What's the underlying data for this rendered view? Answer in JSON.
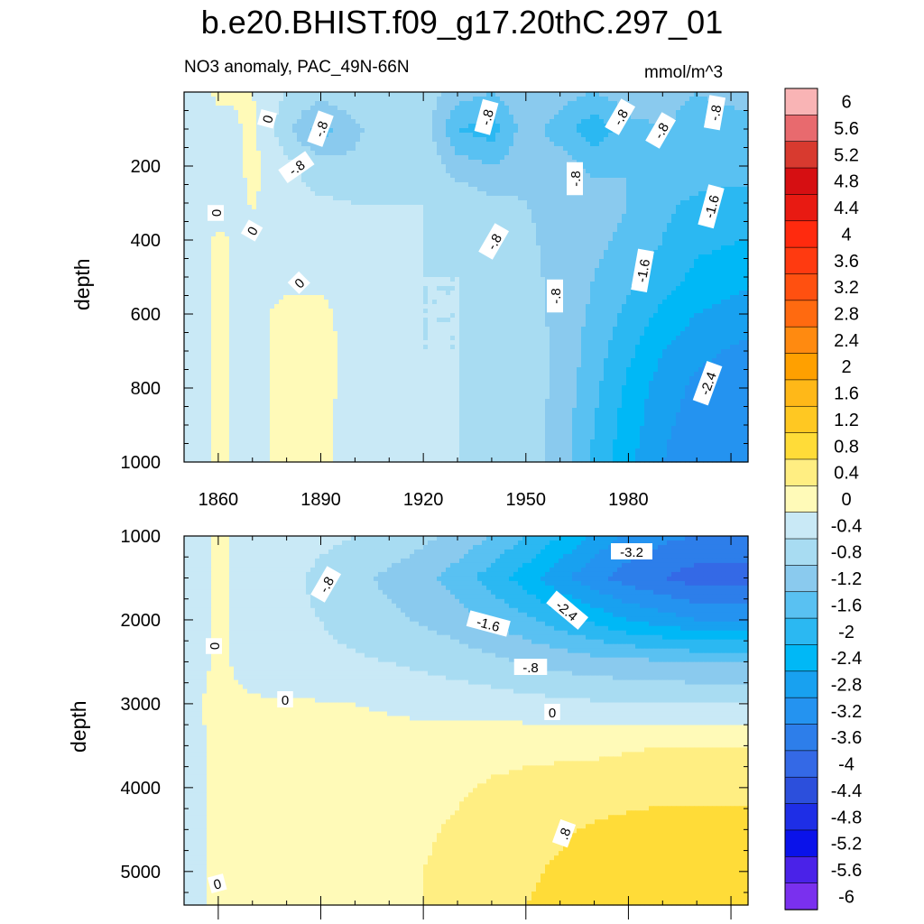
{
  "page_title": "b.e20.BHIST.f09_g17.20thC.297_01",
  "chart_data": [
    {
      "type": "heatmap",
      "panel": "top",
      "subtitle_left": "NO3 anomaly, PAC_49N-66N",
      "subtitle_right": "mmol/m^3",
      "ylabel": "depth",
      "y_reversed": true,
      "ylim": [
        0,
        1000
      ],
      "xlim": [
        1850,
        2015
      ],
      "xticks": [
        1860,
        1890,
        1920,
        1950,
        1980
      ],
      "yticks": [
        200,
        400,
        600,
        800,
        1000
      ],
      "contour_labels": [
        "0",
        "-.8",
        "-.8",
        "-.8",
        "-.8",
        "-.8",
        "-.8",
        "0",
        "0",
        "0",
        "-.8",
        "-.8",
        "-.8",
        "-1.6",
        "-1.6",
        "-2.4"
      ],
      "time": [
        1850,
        1860,
        1870,
        1880,
        1890,
        1900,
        1910,
        1920,
        1930,
        1940,
        1950,
        1960,
        1970,
        1980,
        1990,
        2000,
        2015
      ],
      "depth": [
        0,
        100,
        200,
        300,
        400,
        500,
        600,
        700,
        800,
        900,
        1000
      ],
      "values": [
        [
          -0.3,
          0.1,
          0.0,
          -0.4,
          -0.6,
          -0.5,
          -0.4,
          -0.6,
          -1.0,
          -1.2,
          -0.8,
          -1.0,
          -1.2,
          -1.0,
          -1.1,
          -1.2,
          -1.1
        ],
        [
          -0.4,
          -0.2,
          0.1,
          -0.7,
          -1.4,
          -0.9,
          -0.5,
          -0.5,
          -1.6,
          -1.8,
          -1.0,
          -1.4,
          -1.9,
          -1.3,
          -1.2,
          -1.3,
          -1.3
        ],
        [
          -0.4,
          -0.3,
          0.1,
          -0.3,
          -0.6,
          -0.7,
          -0.5,
          -0.5,
          -1.0,
          -1.2,
          -0.9,
          -1.0,
          -1.3,
          -1.2,
          -1.2,
          -1.3,
          -1.4
        ],
        [
          -0.3,
          -0.3,
          0.05,
          -0.3,
          -0.35,
          -0.4,
          -0.4,
          -0.4,
          -0.5,
          -0.7,
          -0.8,
          -0.9,
          -1.0,
          -1.2,
          -1.5,
          -1.7,
          -1.8
        ],
        [
          -0.3,
          0.1,
          -0.2,
          -0.3,
          -0.3,
          -0.35,
          -0.35,
          -0.4,
          -0.45,
          -0.6,
          -0.75,
          -0.9,
          -1.1,
          -1.3,
          -1.6,
          -1.9,
          -2.0
        ],
        [
          -0.3,
          0.1,
          -0.2,
          -0.2,
          -0.2,
          -0.3,
          -0.35,
          -0.4,
          -0.4,
          -0.5,
          -0.7,
          -0.9,
          -1.2,
          -1.5,
          -1.8,
          -2.1,
          -2.3
        ],
        [
          -0.3,
          0.1,
          -0.2,
          0.2,
          0.2,
          -0.3,
          -0.35,
          -0.4,
          -0.4,
          -0.45,
          -0.65,
          -0.9,
          -1.3,
          -1.7,
          -2.1,
          -2.4,
          -2.6
        ],
        [
          -0.3,
          0.1,
          -0.2,
          0.2,
          0.2,
          -0.25,
          -0.35,
          -0.4,
          -0.4,
          -0.45,
          -0.6,
          -0.9,
          -1.4,
          -1.9,
          -2.4,
          -2.7,
          -2.9
        ],
        [
          -0.3,
          0.1,
          -0.2,
          0.2,
          0.2,
          -0.25,
          -0.3,
          -0.35,
          -0.4,
          -0.45,
          -0.6,
          -0.9,
          -1.5,
          -2.1,
          -2.6,
          -2.9,
          -3.0
        ],
        [
          -0.3,
          0.1,
          -0.2,
          0.2,
          0.15,
          -0.25,
          -0.3,
          -0.35,
          -0.4,
          -0.45,
          -0.55,
          -1.0,
          -1.6,
          -2.2,
          -2.7,
          -3.0,
          -3.1
        ],
        [
          -0.3,
          0.1,
          -0.2,
          0.2,
          0.1,
          -0.25,
          -0.3,
          -0.35,
          -0.4,
          -0.45,
          -0.55,
          -1.0,
          -1.7,
          -2.3,
          -2.8,
          -3.1,
          -3.2
        ]
      ]
    },
    {
      "type": "heatmap",
      "panel": "bottom",
      "ylabel": "depth",
      "y_reversed": true,
      "ylim": [
        1000,
        5400
      ],
      "xlim": [
        1850,
        2015
      ],
      "yticks": [
        1000,
        2000,
        3000,
        4000,
        5000
      ],
      "contour_labels": [
        "-.8",
        "0",
        "0",
        "-1.6",
        "-2.4",
        "-3.2",
        "-.8",
        "0",
        ".8",
        "0"
      ],
      "time": [
        1850,
        1860,
        1870,
        1880,
        1890,
        1900,
        1910,
        1920,
        1930,
        1940,
        1950,
        1960,
        1970,
        1980,
        1990,
        2000,
        2015
      ],
      "depth": [
        1000,
        1500,
        2000,
        2500,
        3000,
        3500,
        4000,
        4500,
        5000,
        5400
      ],
      "values": [
        [
          -0.3,
          0.1,
          -0.2,
          -0.2,
          -0.3,
          -0.4,
          -0.5,
          -0.7,
          -0.9,
          -1.2,
          -1.6,
          -2.0,
          -2.5,
          -2.9,
          -3.1,
          -3.2,
          -3.2
        ],
        [
          -0.3,
          0.1,
          -0.2,
          -0.3,
          -0.5,
          -0.7,
          -0.9,
          -1.1,
          -1.4,
          -1.8,
          -2.2,
          -2.7,
          -3.1,
          -3.4,
          -3.6,
          -3.8,
          -3.8
        ],
        [
          -0.3,
          0.1,
          -0.2,
          -0.3,
          -0.4,
          -0.55,
          -0.7,
          -0.85,
          -1.0,
          -1.25,
          -1.5,
          -1.8,
          -2.1,
          -2.4,
          -2.6,
          -2.8,
          -2.8
        ],
        [
          -0.3,
          0.1,
          -0.2,
          -0.25,
          -0.3,
          -0.35,
          -0.4,
          -0.5,
          -0.6,
          -0.7,
          -0.85,
          -0.95,
          -1.05,
          -1.1,
          -1.15,
          -1.2,
          -1.2
        ],
        [
          -0.1,
          0.1,
          0.05,
          0.05,
          0.02,
          0.0,
          -0.05,
          -0.1,
          -0.15,
          -0.2,
          -0.25,
          -0.3,
          -0.35,
          -0.35,
          -0.4,
          -0.4,
          -0.4
        ],
        [
          -0.2,
          0.1,
          0.15,
          0.15,
          0.15,
          0.15,
          0.15,
          0.15,
          0.2,
          0.25,
          0.3,
          0.3,
          0.3,
          0.35,
          0.4,
          0.4,
          0.4
        ],
        [
          -0.2,
          0.1,
          0.2,
          0.2,
          0.2,
          0.2,
          0.2,
          0.25,
          0.35,
          0.45,
          0.5,
          0.55,
          0.6,
          0.65,
          0.7,
          0.7,
          0.7
        ],
        [
          -0.2,
          0.1,
          0.2,
          0.2,
          0.2,
          0.2,
          0.3,
          0.35,
          0.45,
          0.55,
          0.65,
          0.75,
          0.85,
          0.9,
          0.95,
          0.95,
          0.95
        ],
        [
          -0.2,
          0.1,
          0.2,
          0.2,
          0.2,
          0.25,
          0.3,
          0.4,
          0.5,
          0.65,
          0.75,
          0.85,
          0.95,
          1.0,
          1.0,
          1.0,
          1.0
        ],
        [
          -0.2,
          0.1,
          0.2,
          0.2,
          0.2,
          0.25,
          0.3,
          0.4,
          0.55,
          0.7,
          0.8,
          0.9,
          1.0,
          1.05,
          1.05,
          1.05,
          1.05
        ]
      ]
    }
  ],
  "colorbar": {
    "labels": [
      "6",
      "5.6",
      "5.2",
      "4.8",
      "4.4",
      "4",
      "3.6",
      "3.2",
      "2.8",
      "2.4",
      "2",
      "1.6",
      "1.2",
      "0.8",
      "0.4",
      "0",
      "-0.4",
      "-0.8",
      "-1.2",
      "-1.6",
      "-2",
      "-2.4",
      "-2.8",
      "-3.2",
      "-3.6",
      "-4",
      "-4.4",
      "-4.8",
      "-5.2",
      "-5.6",
      "-6"
    ],
    "colors": [
      "#F9B4B5",
      "#E86A6E",
      "#D83A2F",
      "#D60F12",
      "#E81A12",
      "#FF2A0E",
      "#FF3A10",
      "#FF5010",
      "#FF6A10",
      "#FF8A10",
      "#FFA000",
      "#FFB818",
      "#FFC822",
      "#FFDC38",
      "#FFEE82",
      "#FFFAB8",
      "#C9E9F6",
      "#A8DCF2",
      "#8ACAEE",
      "#59C1F2",
      "#2BB8F2",
      "#00B8F6",
      "#18A1F0",
      "#2493F0",
      "#2D7EEA",
      "#3469E6",
      "#2C4FDC",
      "#1E2EE6",
      "#0A12EA",
      "#4A22E8",
      "#7A30EE"
    ]
  }
}
